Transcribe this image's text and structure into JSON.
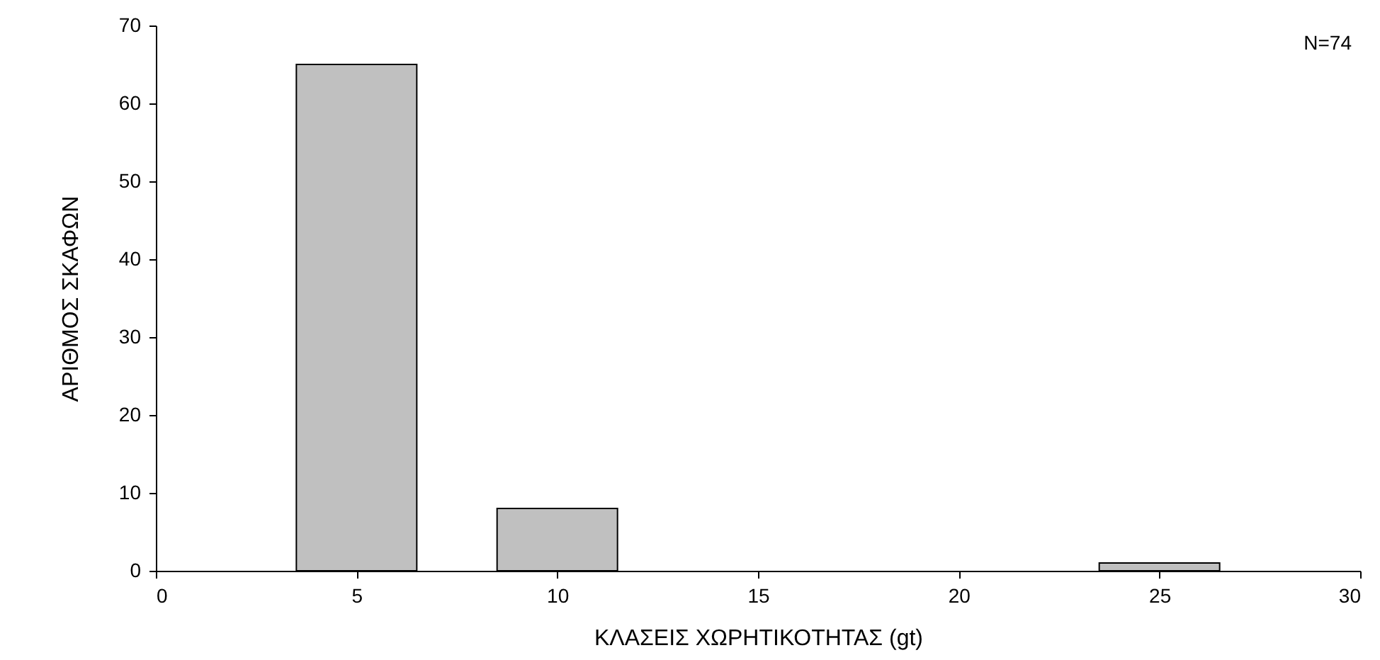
{
  "chart_data": {
    "type": "bar",
    "xlabel": "ΚΛΑΣΕΙΣ ΧΩΡΗΤΙΚΟΤΗΤΑΣ (gt)",
    "ylabel": "ΑΡΙΘΜΟΣ ΣΚΑΦΩΝ",
    "x": [
      5,
      10,
      25
    ],
    "series": [
      {
        "color": "#c0c0c0",
        "values": [
          65,
          8,
          1
        ]
      }
    ],
    "xlim": [
      0,
      30
    ],
    "xticks": [
      0,
      5,
      10,
      15,
      20,
      25,
      30
    ],
    "ylim": [
      0,
      70
    ],
    "yticks": [
      0,
      10,
      20,
      30,
      40,
      50,
      60,
      70
    ],
    "grid": false,
    "annotations": [
      "N=74"
    ]
  }
}
